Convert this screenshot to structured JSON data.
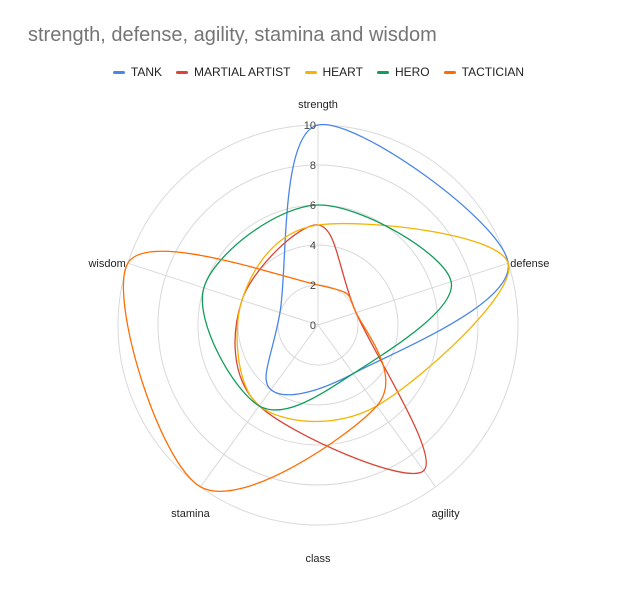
{
  "chart_data": {
    "type": "radar",
    "title": "strength, defense, agility, stamina and wisdom",
    "axes": [
      "strength",
      "defense",
      "agility",
      "stamina",
      "wisdom"
    ],
    "xlabel": "class",
    "rlim": [
      0,
      10
    ],
    "ticks": [
      "0",
      "2",
      "4",
      "6",
      "8",
      "10"
    ],
    "legend_position": "top",
    "series": [
      {
        "name": "TANK",
        "color": "#4a86e8",
        "values": [
          10,
          10,
          3,
          4,
          2
        ]
      },
      {
        "name": "MARTIAL ARTIST",
        "color": "#db4437",
        "values": [
          5,
          2,
          9,
          5,
          4
        ]
      },
      {
        "name": "HEART",
        "color": "#f4b400",
        "values": [
          5,
          10,
          5,
          5,
          4
        ]
      },
      {
        "name": "HERO",
        "color": "#0f9d58",
        "values": [
          6,
          7,
          3,
          5,
          6
        ]
      },
      {
        "name": "TACTICIAN",
        "color": "#ff6d01",
        "values": [
          2,
          2,
          5,
          10,
          10
        ]
      }
    ]
  }
}
